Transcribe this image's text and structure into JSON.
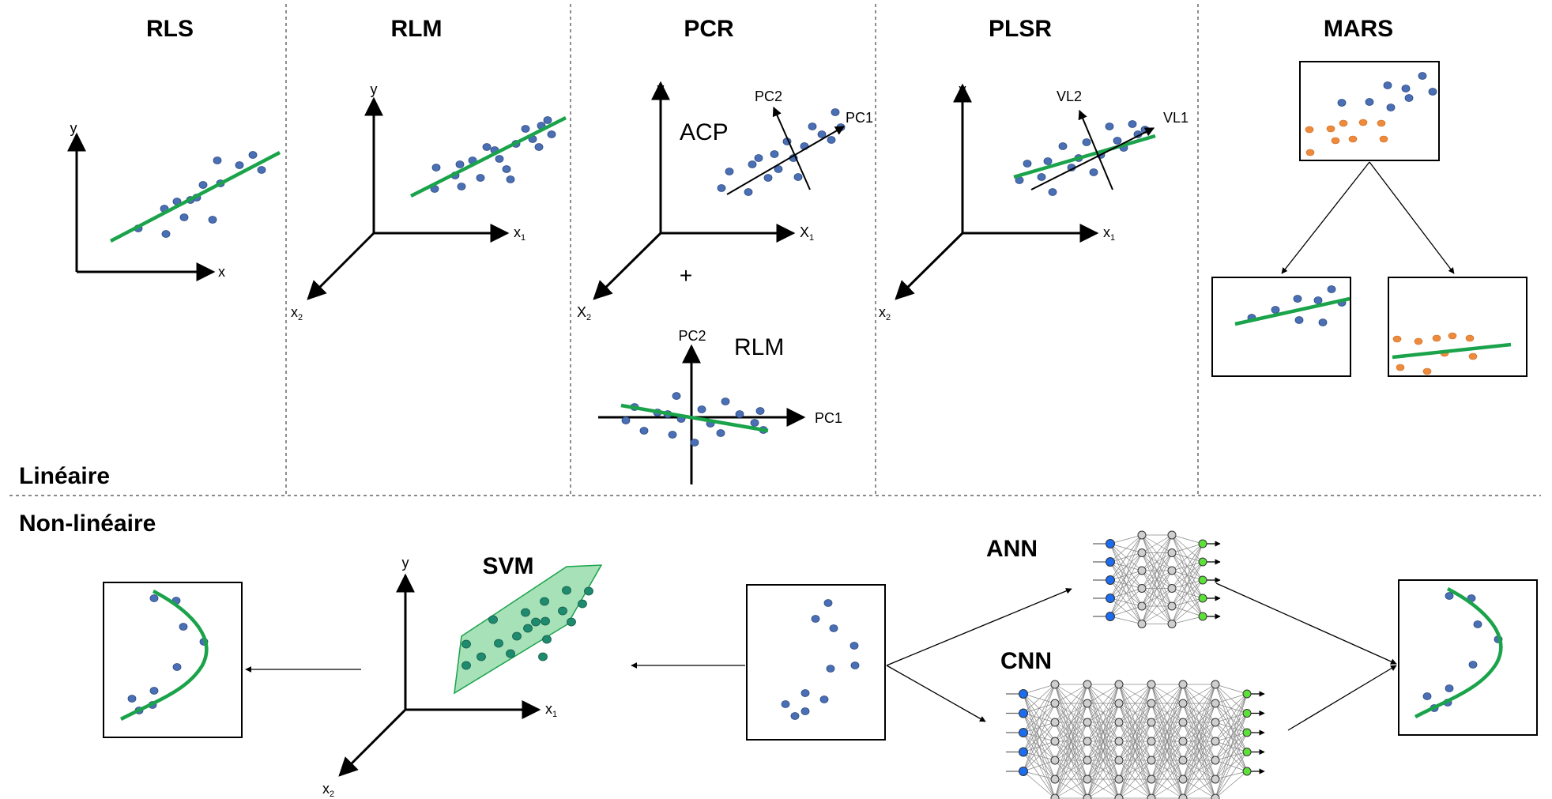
{
  "titles": {
    "rls": "RLS",
    "rlm": "RLM",
    "pcr": "PCR",
    "plsr": "PLSR",
    "mars": "MARS",
    "svm": "SVM",
    "ann": "ANN",
    "cnn": "CNN"
  },
  "sections": {
    "linear": "Linéaire",
    "nonlinear": "Non-linéaire"
  },
  "labels": {
    "acp": "ACP",
    "rlm_sub": "RLM",
    "plus": "+",
    "y": "y",
    "x": "x",
    "x1": "x",
    "x2": "x",
    "X1": "X",
    "X2": "X",
    "sub1": "1",
    "sub2": "2",
    "pc1": "PC1",
    "pc2": "PC2",
    "vl1": "VL1",
    "vl2": "VL2"
  },
  "colors": {
    "point": "#4a6fb5",
    "point_stroke": "#2c4a80",
    "orange": "#ee8a3c",
    "fit": "#1aa34a",
    "plane": "#5cc87e",
    "input_node": "#1c6cf0",
    "output_node": "#5ee03a",
    "hidden_node": "#cfcfcf"
  }
}
